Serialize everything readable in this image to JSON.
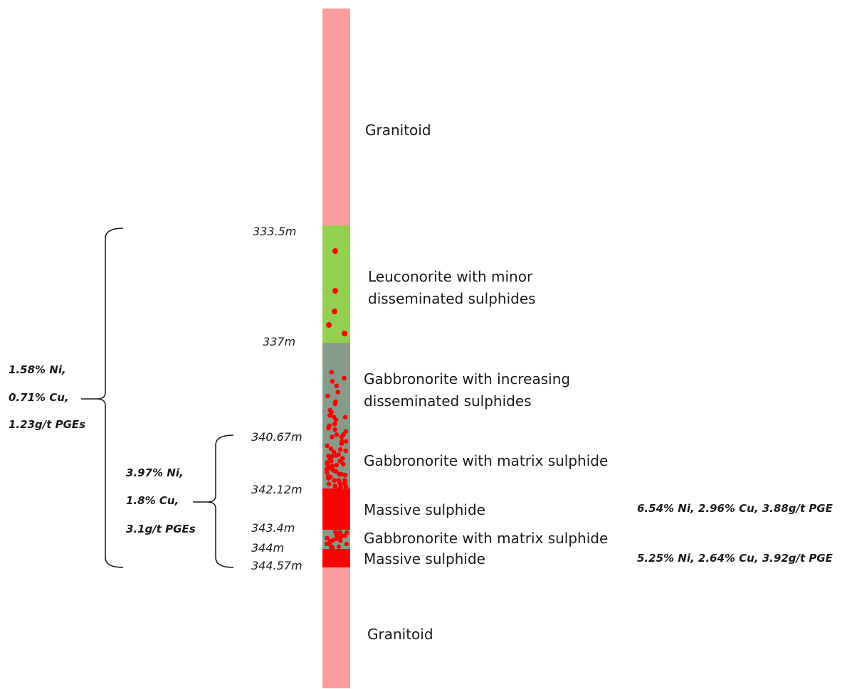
{
  "colors": {
    "granitoid": "#fc9c9c",
    "leuconorite": "#92d050",
    "gabbronorite": "#869c8b",
    "sulphide": "#ff0000"
  },
  "layers": [
    {
      "label": "Granitoid"
    },
    {
      "label": "Leuconorite with minor\ndisseminated sulphides"
    },
    {
      "label": "Gabbronorite with increasing\ndisseminated sulphides"
    },
    {
      "label": "Gabbronorite with matrix sulphide"
    },
    {
      "label": "Massive sulphide"
    },
    {
      "label": "Gabbronorite with matrix sulphide"
    },
    {
      "label": "Massive sulphide"
    },
    {
      "label": "Granitoid"
    }
  ],
  "depths": [
    "333.5m",
    "337m",
    "340.67m",
    "342.12m",
    "343.4m",
    "344m",
    "344.57m"
  ],
  "assays_right": [
    "6.54% Ni, 2.96% Cu, 3.88g/t PGE",
    "5.25% Ni, 2.64% Cu, 3.92g/t PGE"
  ],
  "interval_outer": [
    "1.58% Ni,",
    "0.71% Cu,",
    "1.23g/t PGEs"
  ],
  "interval_inner": [
    "3.97% Ni,",
    "1.8% Cu,",
    "3.1g/t PGEs"
  ]
}
